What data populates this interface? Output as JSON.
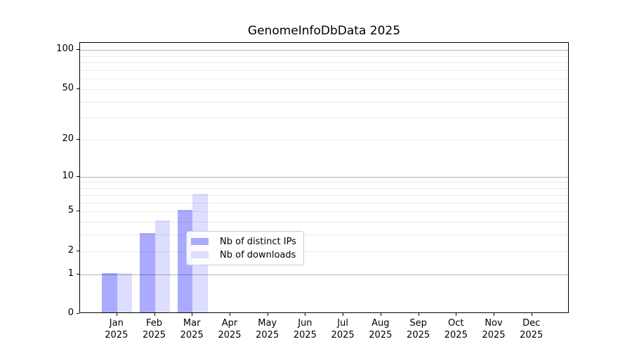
{
  "chart_data": {
    "type": "bar",
    "title": "GenomeInfoDbData 2025",
    "x": {
      "months": [
        "Jan",
        "Feb",
        "Mar",
        "Apr",
        "May",
        "Jun",
        "Jul",
        "Aug",
        "Sep",
        "Oct",
        "Nov",
        "Dec"
      ],
      "year": "2025"
    },
    "series": [
      {
        "name": "Nb of distinct IPs",
        "color": "#aaaaff",
        "values": [
          1,
          3,
          5,
          0,
          0,
          0,
          0,
          0,
          0,
          0,
          0,
          0
        ]
      },
      {
        "name": "Nb of downloads",
        "color": "#ddddff",
        "values": [
          1,
          4,
          7,
          0,
          0,
          0,
          0,
          0,
          0,
          0,
          0,
          0
        ]
      }
    ],
    "y_axis": {
      "scale": "log1p",
      "tick_values": [
        0,
        1,
        2,
        5,
        10,
        20,
        50,
        100
      ],
      "tick_labels": [
        "0",
        "1",
        "2",
        "5",
        "10",
        "20",
        "50",
        "100"
      ],
      "major_grid_values": [
        1,
        10,
        100
      ],
      "minor_grid_values": [
        2,
        3,
        4,
        5,
        6,
        7,
        8,
        9,
        20,
        30,
        40,
        50,
        60,
        70,
        80,
        90
      ],
      "ylim": [
        0,
        113
      ]
    },
    "legend": {
      "entries": [
        "Nb of distinct IPs",
        "Nb of downloads"
      ],
      "position": "lower center"
    },
    "colors": {
      "bar_distinct_ips": "#aaaaff",
      "bar_downloads": "#ddddff",
      "major_grid": "#b4b4b4",
      "minor_grid": "#ebebeb",
      "axis": "#000000",
      "text": "#000000",
      "background": "#ffffff",
      "legend_border": "#cccccc"
    },
    "grid": true
  }
}
